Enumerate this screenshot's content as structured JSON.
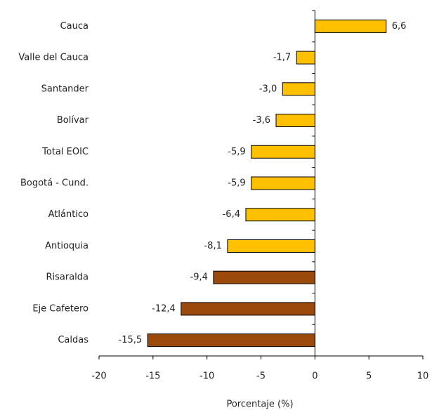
{
  "chart_data": {
    "type": "bar",
    "orientation": "horizontal",
    "categories": [
      "Cauca",
      "Valle del Cauca",
      "Santander",
      "Bolívar",
      "Total EOIC",
      "Bogotá - Cund.",
      "Atlántico",
      "Antioquia",
      "Risaralda",
      "Eje Cafetero",
      "Caldas"
    ],
    "values": [
      6.6,
      -1.7,
      -3.0,
      -3.6,
      -5.9,
      -5.9,
      -6.4,
      -8.1,
      -9.4,
      -12.4,
      -15.5
    ],
    "value_labels": [
      "6,6",
      "-1,7",
      "-3,0",
      "-3,6",
      "-5,9",
      "-5,9",
      "-6,4",
      "-8,1",
      "-9,4",
      "-12,4",
      "-15,5"
    ],
    "colors": [
      "#FFC000",
      "#FFC000",
      "#FFC000",
      "#FFC000",
      "#FFC000",
      "#FFC000",
      "#FFC000",
      "#FFC000",
      "#9C4A0C",
      "#9C4A0C",
      "#9C4A0C"
    ],
    "xlim": [
      -20,
      10
    ],
    "xticks": [
      -20,
      -15,
      -10,
      -5,
      0,
      5,
      10
    ],
    "xlabel": "Porcentaje (%)",
    "grid": false
  }
}
